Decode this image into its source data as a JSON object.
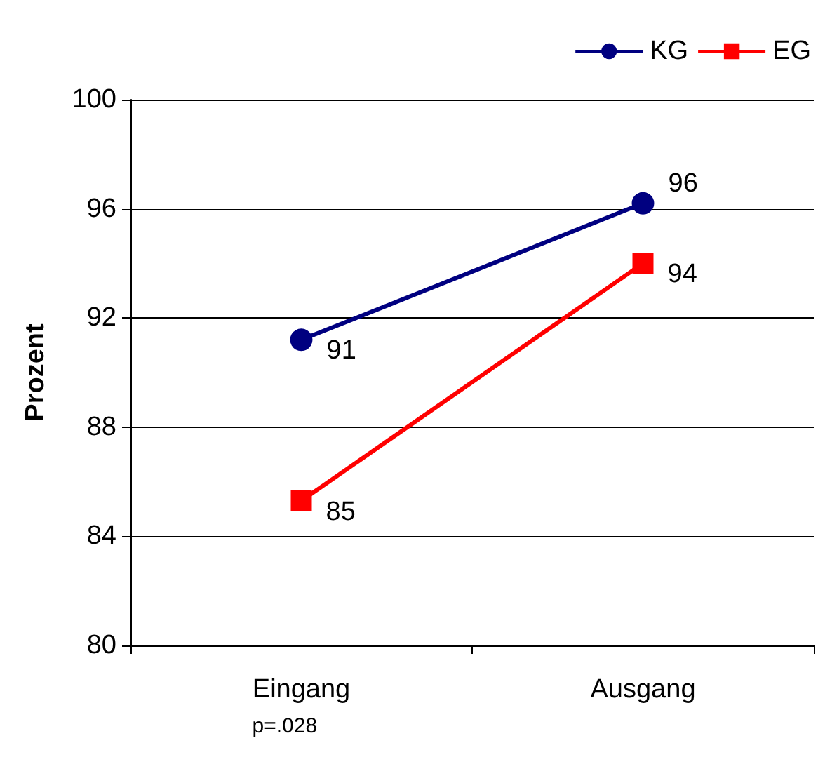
{
  "chart_data": {
    "type": "line",
    "ylabel": "Prozent",
    "categories": [
      "Eingang",
      "Ausgang"
    ],
    "series": [
      {
        "name": "KG",
        "color": "#000080",
        "marker": "circle",
        "values": [
          91.2,
          96.2
        ],
        "value_labels": [
          "91",
          "96"
        ]
      },
      {
        "name": "EG",
        "color": "#ff0000",
        "marker": "square",
        "values": [
          85.3,
          94.0
        ],
        "value_labels": [
          "85",
          "94"
        ]
      }
    ],
    "ylim": [
      80,
      100
    ],
    "yticks": [
      80,
      84,
      88,
      92,
      96,
      100
    ],
    "grid": "y",
    "legend": "top right",
    "annotations": [
      "p=.028"
    ]
  }
}
